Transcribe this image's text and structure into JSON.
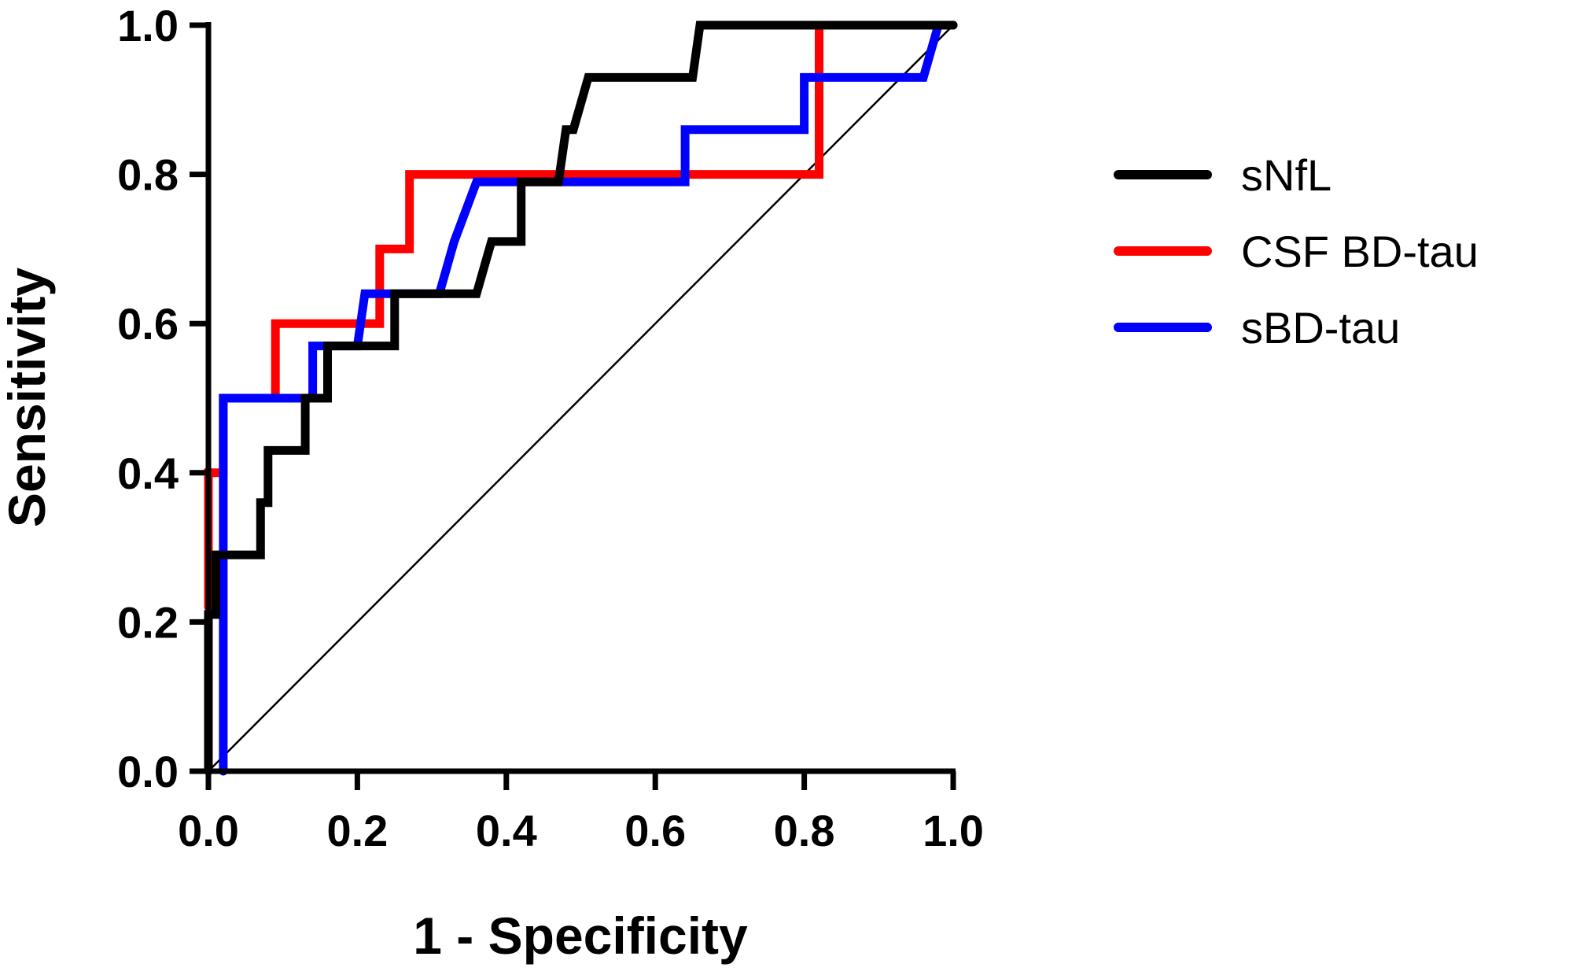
{
  "chart_data": {
    "type": "line",
    "title": "",
    "xlabel": "1 - Specificity",
    "ylabel": "Sensitivity",
    "xlim": [
      0,
      1
    ],
    "ylim": [
      0,
      1
    ],
    "xticks": [
      "0.0",
      "0.2",
      "0.4",
      "0.6",
      "0.8",
      "1.0"
    ],
    "yticks": [
      "0.0",
      "0.2",
      "0.4",
      "0.6",
      "0.8",
      "1.0"
    ],
    "grid": false,
    "legend_position": "right",
    "reference_line": {
      "x": [
        0,
        1
      ],
      "y": [
        0,
        1
      ],
      "color": "#000000"
    },
    "series": [
      {
        "name": "sNfL",
        "color": "#000000",
        "x": [
          0,
          0,
          0.01,
          0.01,
          0.07,
          0.07,
          0.08,
          0.08,
          0.1,
          0.1,
          0.13,
          0.13,
          0.16,
          0.16,
          0.25,
          0.25,
          0.36,
          0.38,
          0.42,
          0.42,
          0.47,
          0.48,
          0.49,
          0.51,
          0.65,
          0.66,
          1.0
        ],
        "y": [
          0,
          0.21,
          0.21,
          0.29,
          0.29,
          0.36,
          0.36,
          0.43,
          0.43,
          0.43,
          0.43,
          0.5,
          0.5,
          0.57,
          0.57,
          0.64,
          0.64,
          0.71,
          0.71,
          0.79,
          0.79,
          0.86,
          0.86,
          0.93,
          0.93,
          1.0,
          1.0
        ]
      },
      {
        "name": "CSF BD-tau",
        "color": "#ff0000",
        "x": [
          0,
          0,
          0.02,
          0.02,
          0.09,
          0.09,
          0.23,
          0.23,
          0.27,
          0.27,
          0.82,
          0.82,
          1.0
        ],
        "y": [
          0.22,
          0.4,
          0.4,
          0.5,
          0.5,
          0.6,
          0.6,
          0.7,
          0.7,
          0.8,
          0.8,
          1.0,
          1.0
        ]
      },
      {
        "name": "sBD-tau",
        "color": "#0000ff",
        "x": [
          0.02,
          0.02,
          0.11,
          0.14,
          0.14,
          0.2,
          0.21,
          0.21,
          0.23,
          0.31,
          0.33,
          0.36,
          0.64,
          0.64,
          0.8,
          0.8,
          0.96,
          0.98,
          1.0
        ],
        "y": [
          0,
          0.5,
          0.5,
          0.5,
          0.57,
          0.57,
          0.64,
          0.64,
          0.64,
          0.64,
          0.71,
          0.79,
          0.79,
          0.86,
          0.86,
          0.93,
          0.93,
          1.0,
          1.0
        ]
      }
    ]
  }
}
